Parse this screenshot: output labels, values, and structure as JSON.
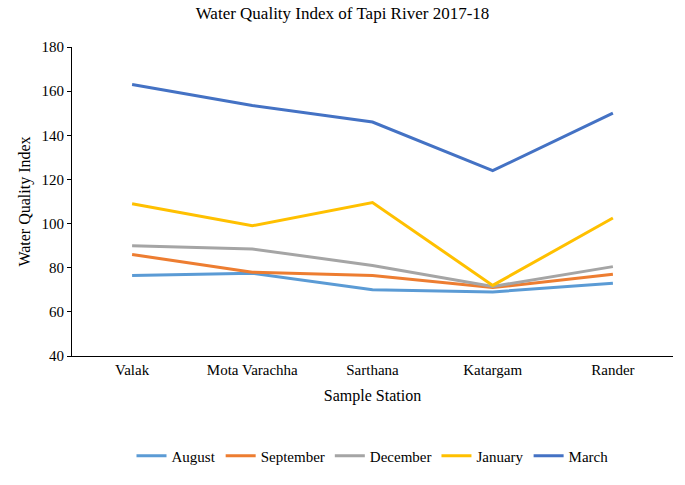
{
  "chart_data": {
    "type": "line",
    "title": "Water Quality Index of Tapi River 2017-18",
    "x_label": "Sample Station",
    "y_label": "Water Quality Index",
    "categories": [
      "Valak",
      "Mota Varachha",
      "Sarthana",
      "Katargam",
      "Rander"
    ],
    "series": [
      {
        "name": "August",
        "color": "#5b9bd5",
        "values": [
          76.5,
          77.5,
          70,
          69,
          73
        ]
      },
      {
        "name": "September",
        "color": "#ed7d31",
        "values": [
          86,
          78,
          76.5,
          71,
          77
        ]
      },
      {
        "name": "December",
        "color": "#a5a5a5",
        "values": [
          90,
          88.5,
          81,
          71.5,
          80.5
        ]
      },
      {
        "name": "January",
        "color": "#ffc000",
        "values": [
          109,
          99,
          109.5,
          72,
          102.5
        ]
      },
      {
        "name": "March",
        "color": "#4472c4",
        "values": [
          163,
          153.5,
          146,
          124,
          150
        ]
      }
    ],
    "ylim": [
      40,
      180
    ],
    "yticks": [
      40,
      60,
      80,
      100,
      120,
      140,
      160,
      180
    ],
    "grid": false,
    "legend": "bottom"
  }
}
